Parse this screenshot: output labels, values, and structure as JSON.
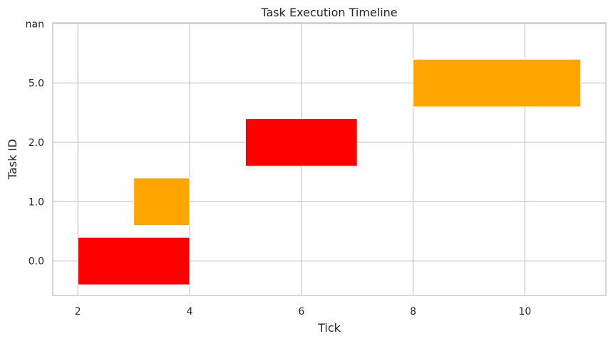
{
  "chart_data": {
    "type": "bar",
    "orientation": "horizontal",
    "title": "Task Execution Timeline",
    "xlabel": "Tick",
    "ylabel": "Task ID",
    "x_ticks": [
      2,
      4,
      6,
      8,
      10
    ],
    "x_tick_labels": [
      "2",
      "4",
      "6",
      "8",
      "10"
    ],
    "xlim": [
      1.55,
      11.45
    ],
    "y_categories": [
      "0.0",
      "1.0",
      "2.0",
      "5.0",
      "nan"
    ],
    "grid": true,
    "legend": "none",
    "bars": [
      {
        "task": "0.0",
        "start": 2,
        "end": 4,
        "color": "#ff0000"
      },
      {
        "task": "1.0",
        "start": 3,
        "end": 4,
        "color": "#ffa500"
      },
      {
        "task": "2.0",
        "start": 5,
        "end": 7,
        "color": "#ff0000"
      },
      {
        "task": "5.0",
        "start": 8,
        "end": 11,
        "color": "#ffa500"
      }
    ]
  }
}
